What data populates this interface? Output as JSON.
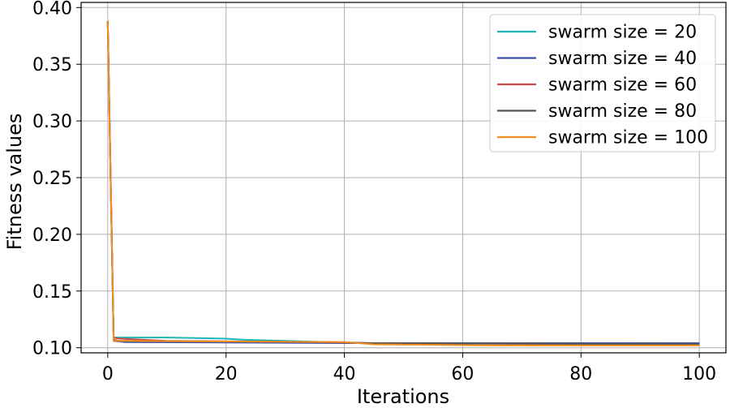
{
  "chart_data": {
    "type": "line",
    "title": "",
    "xlabel": "Iterations",
    "ylabel": "Fitness values",
    "xlim": [
      -4.5,
      104.5
    ],
    "ylim": [
      0.0955,
      0.4045
    ],
    "xticks": [
      0,
      20,
      40,
      60,
      80,
      100
    ],
    "xtick_labels": [
      "0",
      "20",
      "40",
      "60",
      "80",
      "100"
    ],
    "yticks": [
      0.1,
      0.15,
      0.2,
      0.25,
      0.3,
      0.35,
      0.4
    ],
    "ytick_labels": [
      "0.10",
      "0.15",
      "0.20",
      "0.25",
      "0.30",
      "0.35",
      "0.40"
    ],
    "grid": true,
    "legend": "top-right",
    "series": [
      {
        "name": "swarm size = 20",
        "color": "#1fb5b5",
        "x": [
          0,
          1,
          2,
          10,
          20,
          23,
          30,
          37,
          45,
          100
        ],
        "y": [
          0.388,
          0.109,
          0.109,
          0.109,
          0.108,
          0.107,
          0.106,
          0.105,
          0.104,
          0.104
        ]
      },
      {
        "name": "swarm size = 40",
        "color": "#3a4fa8",
        "x": [
          0,
          1,
          3,
          45,
          100
        ],
        "y": [
          0.388,
          0.106,
          0.105,
          0.104,
          0.104
        ]
      },
      {
        "name": "swarm size = 60",
        "color": "#d04848",
        "x": [
          0,
          1,
          2,
          10,
          36,
          45,
          100
        ],
        "y": [
          0.388,
          0.109,
          0.108,
          0.106,
          0.105,
          0.104,
          0.103
        ]
      },
      {
        "name": "swarm size = 80",
        "color": "#555555",
        "x": [
          0,
          1,
          2,
          38,
          45,
          100
        ],
        "y": [
          0.388,
          0.107,
          0.106,
          0.105,
          0.104,
          0.103
        ]
      },
      {
        "name": "swarm size = 100",
        "color": "#f28e1e",
        "x": [
          0,
          1,
          2,
          40,
          45,
          66,
          100
        ],
        "y": [
          0.388,
          0.106,
          0.106,
          0.105,
          0.103,
          0.102,
          0.102
        ]
      }
    ]
  }
}
